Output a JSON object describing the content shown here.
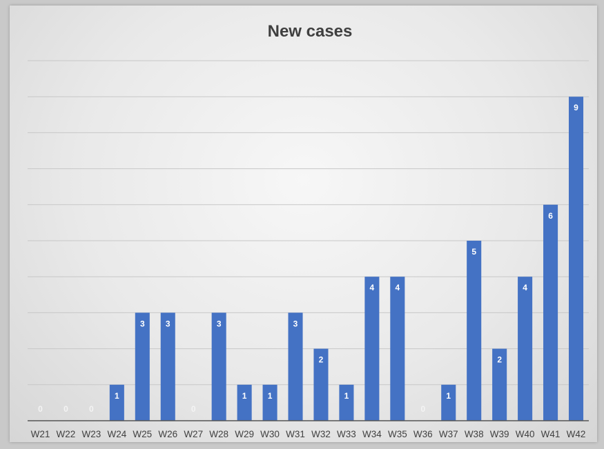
{
  "chart_data": {
    "type": "bar",
    "title": "New cases",
    "xlabel": "",
    "ylabel": "",
    "categories": [
      "W21",
      "W22",
      "W23",
      "W24",
      "W25",
      "W26",
      "W27",
      "W28",
      "W29",
      "W30",
      "W31",
      "W32",
      "W33",
      "W34",
      "W35",
      "W36",
      "W37",
      "W38",
      "W39",
      "W40",
      "W41",
      "W42"
    ],
    "values": [
      0,
      0,
      0,
      1,
      3,
      3,
      0,
      3,
      1,
      1,
      3,
      2,
      1,
      4,
      4,
      0,
      1,
      5,
      2,
      4,
      6,
      9
    ],
    "ylim": [
      0,
      10
    ],
    "grid": true,
    "data_labels": true,
    "legend": "none",
    "bar_color": "#4472c4"
  }
}
